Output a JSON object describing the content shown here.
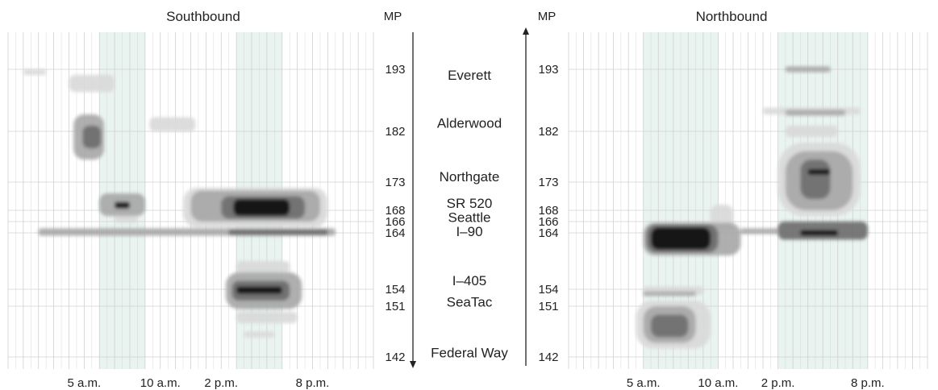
{
  "chart_data": [
    {
      "type": "heatmap",
      "title": "Southbound",
      "x_tick_labels": [
        "5 a.m.",
        "10 a.m.",
        "2 p.m.",
        "8 p.m."
      ],
      "x_tick_hours": [
        5,
        10,
        14,
        20
      ],
      "x_range_hours": [
        0,
        24
      ],
      "shaded_periods_hours": [
        [
          6,
          9
        ],
        [
          15,
          18
        ]
      ],
      "grid": true,
      "milepost_range": [
        142,
        194
      ],
      "congestion_regions": [
        {
          "t": [
            9.3,
            12.3
          ],
          "mp": [
            182,
            184.5
          ],
          "level": 1
        },
        {
          "t": [
            4.3,
            6.3
          ],
          "mp": [
            177,
            185
          ],
          "level": 2
        },
        {
          "t": [
            4.9,
            6.1
          ],
          "mp": [
            179,
            183
          ],
          "level": 3
        },
        {
          "t": [
            4.0,
            7.0
          ],
          "mp": [
            189,
            192
          ],
          "level": 1
        },
        {
          "t": [
            6.0,
            9.0
          ],
          "mp": [
            167,
            171
          ],
          "level": 2
        },
        {
          "t": [
            7.0,
            8.0
          ],
          "mp": [
            168.3,
            169.5
          ],
          "level": 4
        },
        {
          "t": [
            7.0,
            8.5
          ],
          "mp": [
            165.8,
            167
          ],
          "level": 1
        },
        {
          "t": [
            11.5,
            21.0
          ],
          "mp": [
            165,
            172
          ],
          "level": 1
        },
        {
          "t": [
            12.0,
            20.5
          ],
          "mp": [
            166,
            171.5
          ],
          "level": 2
        },
        {
          "t": [
            14.0,
            19.5
          ],
          "mp": [
            166.5,
            170.5
          ],
          "level": 3
        },
        {
          "t": [
            14.8,
            18.5
          ],
          "mp": [
            167,
            170
          ],
          "level": 4
        },
        {
          "t": [
            2.0,
            21.5
          ],
          "mp": [
            163.5,
            164.8
          ],
          "level": 2
        },
        {
          "t": [
            14.5,
            21.0
          ],
          "mp": [
            163.6,
            164.6
          ],
          "level": 3
        },
        {
          "t": [
            15.0,
            18.5
          ],
          "mp": [
            157,
            159
          ],
          "level": 1
        },
        {
          "t": [
            14.3,
            19.3
          ],
          "mp": [
            150.5,
            157
          ],
          "level": 2
        },
        {
          "t": [
            14.7,
            18.5
          ],
          "mp": [
            152,
            155.5
          ],
          "level": 3
        },
        {
          "t": [
            15.0,
            18.0
          ],
          "mp": [
            153.2,
            154.5
          ],
          "level": 4
        },
        {
          "t": [
            15.0,
            19.0
          ],
          "mp": [
            148,
            150
          ],
          "level": 1
        },
        {
          "t": [
            15.5,
            17.5
          ],
          "mp": [
            145.5,
            146.5
          ],
          "level": 1
        },
        {
          "t": [
            1.0,
            2.5
          ],
          "mp": [
            192,
            193
          ],
          "level": 1
        }
      ]
    },
    {
      "type": "heatmap",
      "title": "Northbound",
      "x_tick_labels": [
        "5 a.m.",
        "10 a.m.",
        "2 p.m.",
        "8 p.m."
      ],
      "x_tick_hours": [
        5,
        10,
        14,
        20
      ],
      "x_range_hours": [
        0,
        24
      ],
      "shaded_periods_hours": [
        [
          5,
          10
        ],
        [
          14,
          20
        ]
      ],
      "grid": true,
      "milepost_range": [
        142,
        194
      ],
      "congestion_regions": [
        {
          "t": [
            14.5,
            17.5
          ],
          "mp": [
            192.5,
            193.5
          ],
          "level": 2
        },
        {
          "t": [
            13.0,
            19.5
          ],
          "mp": [
            185,
            186.2
          ],
          "level": 1
        },
        {
          "t": [
            14.5,
            18.5
          ],
          "mp": [
            184.8,
            185.8
          ],
          "level": 2
        },
        {
          "t": [
            14.5,
            18.0
          ],
          "mp": [
            181,
            183
          ],
          "level": 1
        },
        {
          "t": [
            14.0,
            19.5
          ],
          "mp": [
            167,
            180
          ],
          "level": 1
        },
        {
          "t": [
            14.5,
            19.0
          ],
          "mp": [
            168,
            178.5
          ],
          "level": 2
        },
        {
          "t": [
            15.5,
            17.5
          ],
          "mp": [
            170,
            177
          ],
          "level": 3
        },
        {
          "t": [
            16.0,
            17.5
          ],
          "mp": [
            174.3,
            175.3
          ],
          "level": 4
        },
        {
          "t": [
            9.5,
            11.0
          ],
          "mp": [
            164.5,
            169
          ],
          "level": 1
        },
        {
          "t": [
            5.0,
            11.5
          ],
          "mp": [
            160,
            165.8
          ],
          "level": 2
        },
        {
          "t": [
            5.2,
            10.0
          ],
          "mp": [
            160.5,
            165.5
          ],
          "level": 3
        },
        {
          "t": [
            5.5,
            9.5
          ],
          "mp": [
            161,
            165
          ],
          "level": 4
        },
        {
          "t": [
            11.5,
            14.0
          ],
          "mp": [
            163.8,
            164.8
          ],
          "level": 2
        },
        {
          "t": [
            14.0,
            20.0
          ],
          "mp": [
            162.8,
            166
          ],
          "level": 3
        },
        {
          "t": [
            15.5,
            18.0
          ],
          "mp": [
            163.5,
            164.5
          ],
          "level": 4
        },
        {
          "t": [
            5.0,
            9.0
          ],
          "mp": [
            153,
            154.5
          ],
          "level": 1
        },
        {
          "t": [
            5.0,
            8.5
          ],
          "mp": [
            152.8,
            153.6
          ],
          "level": 2
        },
        {
          "t": [
            4.5,
            9.5
          ],
          "mp": [
            143.5,
            152
          ],
          "level": 1
        },
        {
          "t": [
            5.0,
            8.5
          ],
          "mp": [
            144.5,
            151
          ],
          "level": 2
        },
        {
          "t": [
            5.5,
            8.0
          ],
          "mp": [
            145.5,
            149.5
          ],
          "level": 3
        }
      ]
    }
  ],
  "axis": {
    "mp_label_left": "MP",
    "mp_label_right": "MP",
    "mileposts": [
      {
        "label": "193",
        "mp": 193
      },
      {
        "label": "182",
        "mp": 182
      },
      {
        "label": "173",
        "mp": 173
      },
      {
        "label": "168",
        "mp": 168
      },
      {
        "label": "166",
        "mp": 166
      },
      {
        "label": "164",
        "mp": 164
      },
      {
        "label": "154",
        "mp": 154
      },
      {
        "label": "151",
        "mp": 151
      },
      {
        "label": "142",
        "mp": 142
      }
    ],
    "places": [
      {
        "label": "Everett",
        "mp": 192
      },
      {
        "label": "Alderwood",
        "mp": 183.5
      },
      {
        "label": "Northgate",
        "mp": 174
      },
      {
        "label": "SR 520",
        "mp": 169.3
      },
      {
        "label": "Seattle",
        "mp": 166.8
      },
      {
        "label": "I–90",
        "mp": 164.3
      },
      {
        "label": "I–405",
        "mp": 155.6
      },
      {
        "label": "SeaTac",
        "mp": 151.8
      },
      {
        "label": "Federal Way",
        "mp": 142.8
      }
    ]
  },
  "colors": {
    "level1": "#d9d9d9",
    "level2": "#a8a8a8",
    "level3": "#6e6e6e",
    "level4": "#111111",
    "shade": "#e9f3ef",
    "grid": "#d0d0d0",
    "axis": "#222222"
  }
}
